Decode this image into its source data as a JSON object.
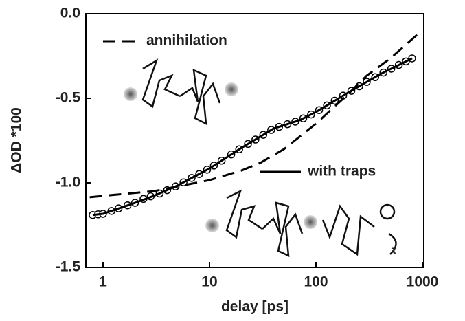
{
  "chart_data": {
    "type": "line",
    "xscale": "log",
    "x_label": "delay [ps]",
    "y_label": "ΔOD *100",
    "xlim": [
      0.69,
      1030
    ],
    "ylim": [
      -1.5,
      0.0
    ],
    "xticks": [
      1,
      10,
      100,
      1000
    ],
    "yticks": [
      {
        "value": 0,
        "label": "0.0"
      },
      -0.5,
      {
        "value": -1,
        "label": "-1.0"
      },
      -1.5
    ],
    "series": [
      {
        "style": "markers",
        "color": "#000000",
        "x": [
          0.8,
          0.9,
          1,
          1.2,
          1.4,
          1.7,
          2,
          2.4,
          2.8,
          3.4,
          4,
          4.8,
          5.7,
          6.8,
          8,
          9.5,
          11,
          13,
          16,
          19,
          23,
          27,
          32,
          38,
          45,
          54,
          64,
          76,
          90,
          107,
          127,
          150,
          180,
          215,
          255,
          300,
          360,
          430,
          510,
          600,
          700,
          800
        ],
        "values": [
          -1.19,
          -1.186,
          -1.183,
          -1.166,
          -1.151,
          -1.133,
          -1.118,
          -1.095,
          -1.08,
          -1.063,
          -1.043,
          -1.021,
          -0.997,
          -0.971,
          -0.948,
          -0.922,
          -0.898,
          -0.869,
          -0.832,
          -0.802,
          -0.77,
          -0.744,
          -0.716,
          -0.687,
          -0.669,
          -0.653,
          -0.638,
          -0.619,
          -0.596,
          -0.57,
          -0.542,
          -0.514,
          -0.484,
          -0.456,
          -0.429,
          -0.403,
          -0.375,
          -0.348,
          -0.325,
          -0.303,
          -0.282,
          -0.264
        ]
      },
      {
        "name": "annihilation",
        "style": "dashed",
        "color": "#000000",
        "x": [
          0.75,
          1,
          3,
          10,
          20,
          30,
          50,
          100,
          200,
          300,
          500,
          900
        ],
        "values": [
          -1.085,
          -1.077,
          -1.049,
          -0.984,
          -0.927,
          -0.882,
          -0.801,
          -0.65,
          -0.476,
          -0.366,
          -0.264,
          -0.122
        ]
      },
      {
        "name": "with traps",
        "style": "solid",
        "color": "#000000",
        "x": [
          0.8,
          1,
          2,
          3,
          5,
          10,
          20,
          40,
          70,
          100,
          200,
          400,
          800
        ],
        "values": [
          -1.19,
          -1.183,
          -1.118,
          -1.077,
          -1.016,
          -0.915,
          -0.793,
          -0.679,
          -0.63,
          -0.581,
          -0.467,
          -0.358,
          -0.264
        ]
      }
    ]
  }
}
